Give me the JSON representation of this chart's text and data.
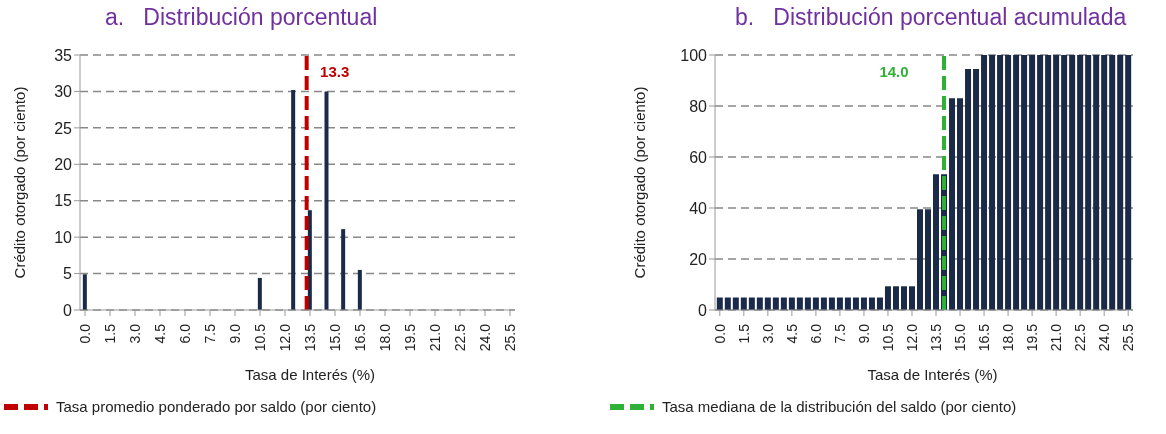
{
  "chart_data": [
    {
      "type": "bar",
      "title": "a.   Distribución porcentual",
      "xlabel": "Tasa de Interés (%)",
      "ylabel": "Crédito otorgado (por ciento)",
      "x": [
        0,
        0.5,
        1,
        1.5,
        2,
        2.5,
        3,
        3.5,
        4,
        4.5,
        5,
        5.5,
        6,
        6.5,
        7,
        7.5,
        8,
        8.5,
        9,
        9.5,
        10,
        10.5,
        11,
        11.5,
        12,
        12.5,
        13,
        13.5,
        14,
        14.5,
        15,
        15.5,
        16,
        16.5,
        17,
        17.5,
        18,
        18.5,
        19,
        19.5,
        20,
        20.5,
        21,
        21.5,
        22,
        22.5,
        23,
        23.5,
        24,
        24.5,
        25,
        25.5
      ],
      "values": [
        4.9,
        0,
        0,
        0,
        0,
        0,
        0,
        0,
        0,
        0,
        0,
        0,
        0,
        0,
        0,
        0,
        0,
        0,
        0,
        0,
        0,
        4.4,
        0,
        0,
        0,
        30.2,
        0,
        13.7,
        0,
        30,
        0,
        11.1,
        0,
        5.5,
        0,
        0,
        0,
        0,
        0,
        0,
        0,
        0,
        0,
        0,
        0,
        0,
        0,
        0,
        0,
        0,
        0,
        0
      ],
      "color": "#1a2a48",
      "xlim": [
        -0.3,
        25.8
      ],
      "xticks": [
        {
          "value": 0,
          "label": "0.0"
        },
        {
          "value": 1.5,
          "label": "1.5"
        },
        {
          "value": 3,
          "label": "3.0"
        },
        {
          "value": 4.5,
          "label": "4.5"
        },
        {
          "value": 6,
          "label": "6.0"
        },
        {
          "value": 7.5,
          "label": "7.5"
        },
        {
          "value": 9,
          "label": "9.0"
        },
        {
          "value": 10.5,
          "label": "10.5"
        },
        {
          "value": 12,
          "label": "12.0"
        },
        {
          "value": 13.5,
          "label": "13.5"
        },
        {
          "value": 15,
          "label": "15.0"
        },
        {
          "value": 16.5,
          "label": "16.5"
        },
        {
          "value": 18,
          "label": "18.0"
        },
        {
          "value": 19.5,
          "label": "19.5"
        },
        {
          "value": 21,
          "label": "21.0"
        },
        {
          "value": 22.5,
          "label": "22.5"
        },
        {
          "value": 24,
          "label": "24.0"
        },
        {
          "value": 25.5,
          "label": "25.5"
        }
      ],
      "ylim": [
        0,
        35
      ],
      "yticks": [
        0,
        5,
        10,
        15,
        20,
        25,
        30,
        35
      ],
      "grid": "y",
      "ref_lines": [
        {
          "axis": "x",
          "value": 13.3,
          "label": "13.3",
          "color": "#c00000",
          "line_style": "dashed"
        }
      ],
      "annotations": [
        "Tasa promedio ponderado por saldo (por ciento)"
      ]
    },
    {
      "type": "bar",
      "title": "b.   Distribución porcentual acumulada",
      "xlabel": "Tasa de Interés (%)",
      "ylabel": "Crédito otorgado (por ciento)",
      "x": [
        0,
        0.5,
        1,
        1.5,
        2,
        2.5,
        3,
        3.5,
        4,
        4.5,
        5,
        5.5,
        6,
        6.5,
        7,
        7.5,
        8,
        8.5,
        9,
        9.5,
        10,
        10.5,
        11,
        11.5,
        12,
        12.5,
        13,
        13.5,
        14,
        14.5,
        15,
        15.5,
        16,
        16.5,
        17,
        17.5,
        18,
        18.5,
        19,
        19.5,
        20,
        20.5,
        21,
        21.5,
        22,
        22.5,
        23,
        23.5,
        24,
        24.5,
        25,
        25.5
      ],
      "values": [
        4.9,
        4.9,
        4.9,
        4.9,
        4.9,
        4.9,
        4.9,
        4.9,
        4.9,
        4.9,
        4.9,
        4.9,
        4.9,
        4.9,
        4.9,
        4.9,
        4.9,
        4.9,
        4.9,
        4.9,
        4.9,
        9.3,
        9.3,
        9.3,
        9.3,
        39.5,
        39.5,
        53.2,
        53.2,
        83,
        83,
        94.5,
        94.5,
        100,
        100,
        100,
        100,
        100,
        100,
        100,
        100,
        100,
        100,
        100,
        100,
        100,
        100,
        100,
        100,
        100,
        100,
        100
      ],
      "color": "#1a2a48",
      "xlim": [
        -0.3,
        25.8
      ],
      "xticks": [
        {
          "value": 0,
          "label": "0.0"
        },
        {
          "value": 1.5,
          "label": "1.5"
        },
        {
          "value": 3,
          "label": "3.0"
        },
        {
          "value": 4.5,
          "label": "4.5"
        },
        {
          "value": 6,
          "label": "6.0"
        },
        {
          "value": 7.5,
          "label": "7.5"
        },
        {
          "value": 9,
          "label": "9.0"
        },
        {
          "value": 10.5,
          "label": "10.5"
        },
        {
          "value": 12,
          "label": "12.0"
        },
        {
          "value": 13.5,
          "label": "13.5"
        },
        {
          "value": 15,
          "label": "15.0"
        },
        {
          "value": 16.5,
          "label": "16.5"
        },
        {
          "value": 18,
          "label": "18.0"
        },
        {
          "value": 19.5,
          "label": "19.5"
        },
        {
          "value": 21,
          "label": "21.0"
        },
        {
          "value": 22.5,
          "label": "22.5"
        },
        {
          "value": 24,
          "label": "24.0"
        },
        {
          "value": 25.5,
          "label": "25.5"
        }
      ],
      "ylim": [
        0,
        100
      ],
      "yticks": [
        0,
        20,
        40,
        60,
        80,
        100
      ],
      "grid": "y",
      "ref_lines": [
        {
          "axis": "x",
          "value": 14.0,
          "label": "14.0",
          "color": "#2eb135",
          "line_style": "dashed"
        }
      ],
      "annotations": [
        "Tasa mediana de la distribución del saldo (por ciento)"
      ]
    }
  ]
}
